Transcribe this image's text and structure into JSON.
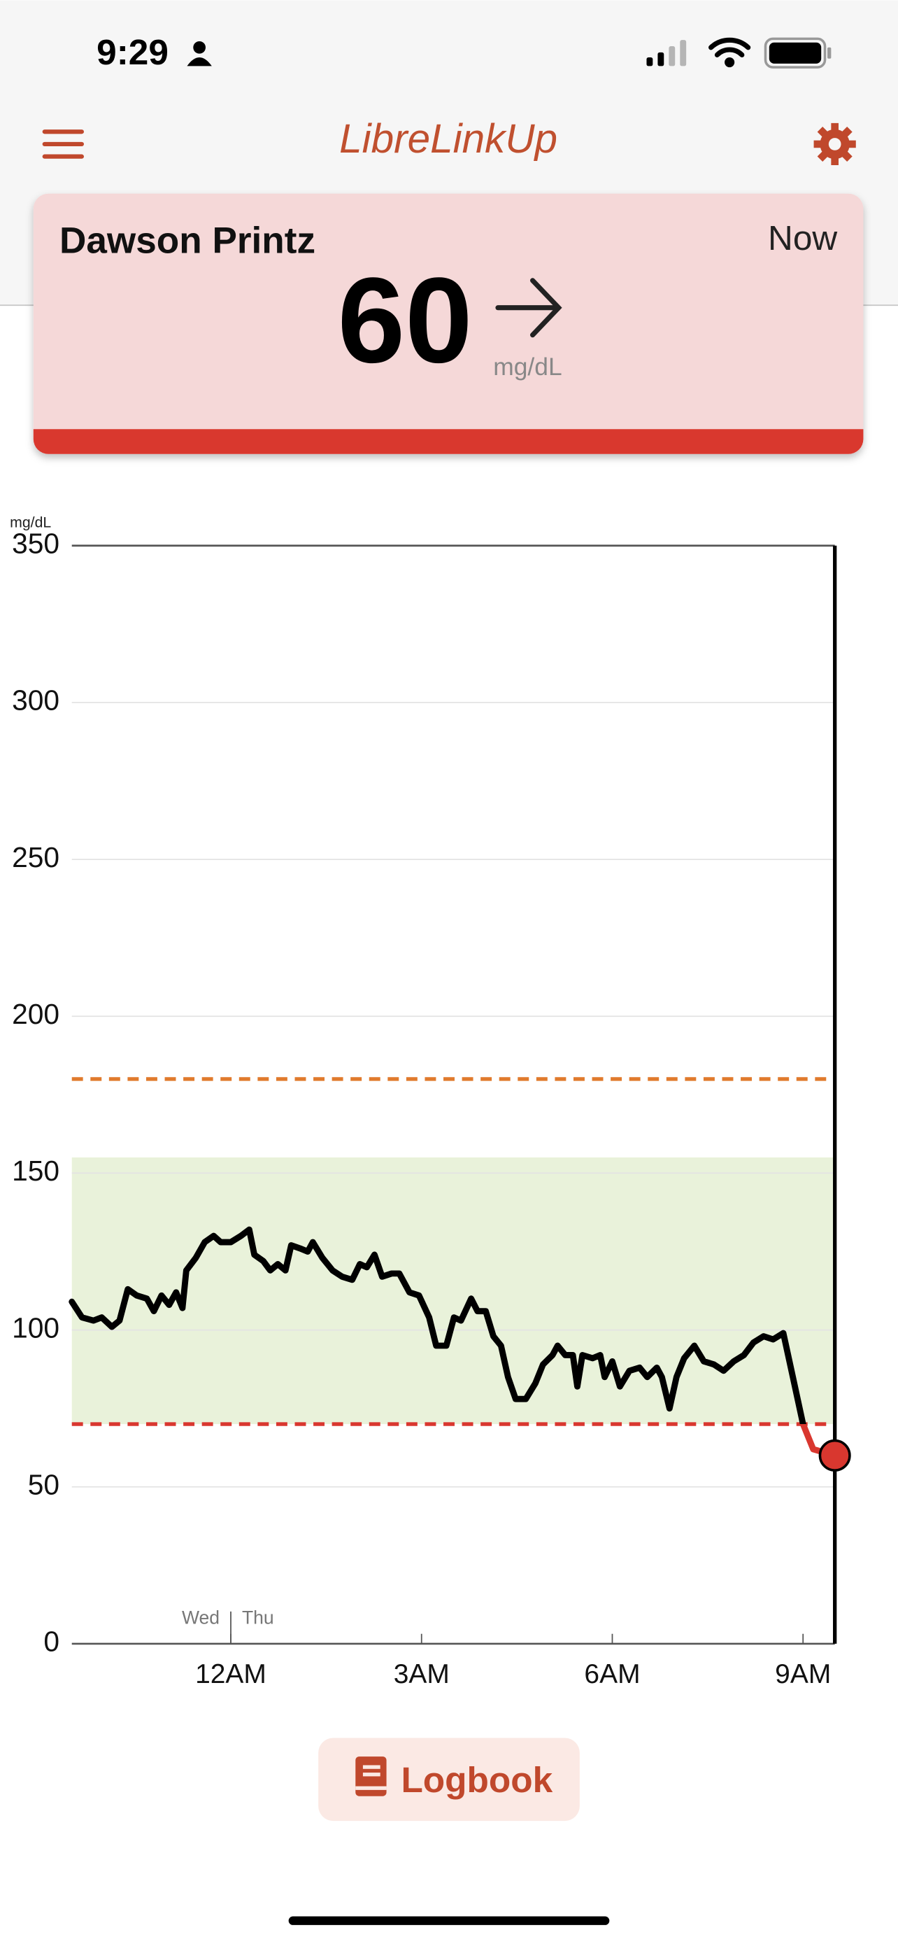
{
  "status_bar": {
    "time": "9:29"
  },
  "header": {
    "title": "LibreLinkUp"
  },
  "reading": {
    "name": "Dawson Printz",
    "time": "Now",
    "value": 60,
    "unit": "mg/dL"
  },
  "chart_data": {
    "type": "line",
    "y_label": "mg/dL",
    "ylim": [
      0,
      350
    ],
    "yticks": [
      0,
      50,
      100,
      150,
      200,
      250,
      300,
      350
    ],
    "xlim": [
      -2.5,
      9.5
    ],
    "xticks": [
      {
        "value": 0,
        "label": "12AM"
      },
      {
        "value": 3,
        "label": "3AM"
      },
      {
        "value": 6,
        "label": "6AM"
      },
      {
        "value": 9,
        "label": "9AM"
      }
    ],
    "day_divider": {
      "x": 0,
      "before": "Wed",
      "after": "Thu"
    },
    "target_range": [
      70,
      155
    ],
    "target_color": "#e9f2da",
    "high_threshold": 180,
    "high_color": "#e07a2c",
    "low_threshold": 70,
    "low_color": "#d9372f",
    "grid": true,
    "series": [
      {
        "color": "#000000",
        "x": [
          -2.5,
          -2.34,
          -2.16,
          -2.03,
          -1.87,
          -1.75,
          -1.62,
          -1.48,
          -1.32,
          -1.21,
          -1.09,
          -0.97,
          -0.86,
          -0.76,
          -0.7,
          -0.55,
          -0.41,
          -0.27,
          -0.16,
          0,
          0.16,
          0.29,
          0.37,
          0.51,
          0.62,
          0.74,
          0.86,
          0.95,
          1.09,
          1.21,
          1.29,
          1.44,
          1.6,
          1.75,
          1.91,
          2.03,
          2.14,
          2.26,
          2.38,
          2.53,
          2.65,
          2.81,
          2.96,
          3.12,
          3.23,
          3.39,
          3.51,
          3.62,
          3.78,
          3.88,
          4.01,
          4.13,
          4.25,
          4.36,
          4.48,
          4.64,
          4.79,
          4.91,
          5.06,
          5.14,
          5.26,
          5.38,
          5.45,
          5.53,
          5.69,
          5.81,
          5.88,
          6,
          6.12,
          6.27,
          6.43,
          6.55,
          6.7,
          6.78,
          6.9,
          7.01,
          7.13,
          7.29,
          7.44,
          7.6,
          7.75,
          7.91,
          8.07,
          8.22,
          8.38,
          8.53,
          8.69,
          8.84,
          9,
          9.16,
          9.5
        ],
        "values": [
          109,
          104,
          103,
          104,
          101,
          103,
          113,
          111,
          110,
          106,
          111,
          108,
          112,
          107,
          119,
          123,
          128,
          130,
          128,
          128,
          130,
          132,
          124,
          122,
          119,
          121,
          119,
          127,
          126,
          125,
          128,
          123,
          119,
          117,
          116,
          121,
          120,
          124,
          117,
          118,
          118,
          112,
          111,
          104,
          95,
          95,
          104,
          103,
          110,
          106,
          106,
          98,
          95,
          85,
          78,
          78,
          83,
          89,
          92,
          95,
          92,
          92,
          82,
          92,
          91,
          92,
          85,
          90,
          82,
          87,
          88,
          85,
          88,
          85,
          75,
          85,
          91,
          95,
          90,
          89,
          87,
          90,
          92,
          96,
          98,
          97,
          99,
          85,
          70,
          62,
          60
        ]
      }
    ]
  },
  "button": {
    "label": "Logbook"
  }
}
